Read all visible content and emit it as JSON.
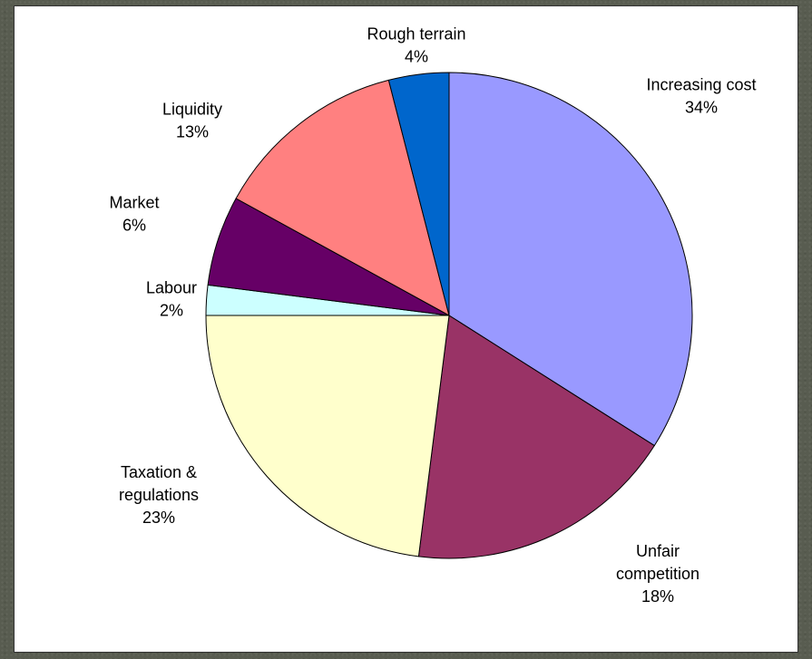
{
  "chart_data": {
    "type": "pie",
    "title": "",
    "legend": "none",
    "start_direction": "top",
    "direction": "clockwise",
    "slices": [
      {
        "label_lines": [
          "Increasing cost",
          "34%"
        ],
        "value": 34,
        "color": "#9999ff"
      },
      {
        "label_lines": [
          "Unfair",
          "competition",
          "18%"
        ],
        "value": 18,
        "color": "#993366"
      },
      {
        "label_lines": [
          "Taxation &",
          "regulations",
          "23%"
        ],
        "value": 23,
        "color": "#ffffcc"
      },
      {
        "label_lines": [
          "Labour",
          "2%"
        ],
        "value": 2,
        "color": "#ccffff"
      },
      {
        "label_lines": [
          "Market",
          "6%"
        ],
        "value": 6,
        "color": "#660066"
      },
      {
        "label_lines": [
          "Liquidity",
          "13%"
        ],
        "value": 13,
        "color": "#ff8080"
      },
      {
        "label_lines": [
          "Rough terrain",
          "4%"
        ],
        "value": 4,
        "color": "#0066cc"
      }
    ]
  }
}
